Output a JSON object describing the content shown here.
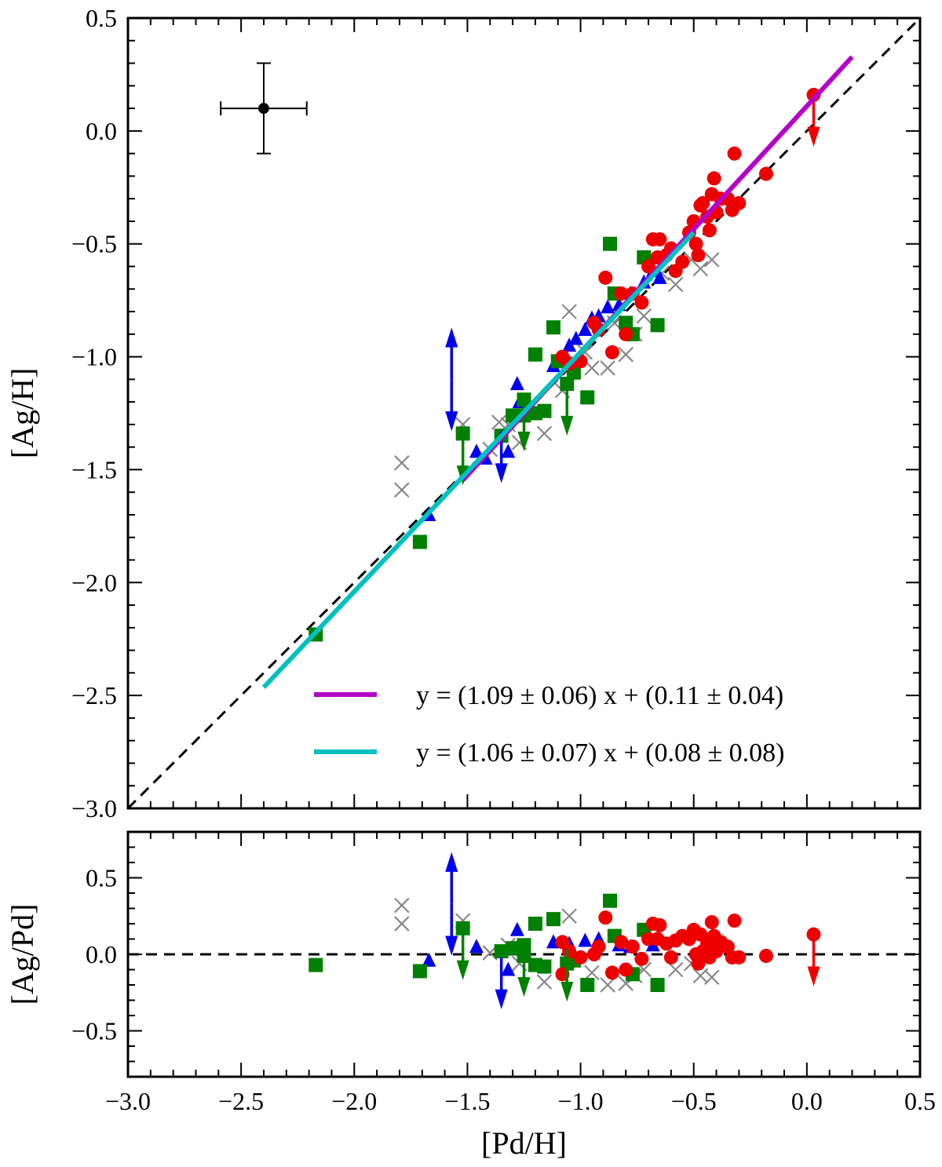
{
  "chart_data": [
    {
      "type": "scatter",
      "panel": "top",
      "xlabel": "",
      "ylabel": "[Ag/H]",
      "xlim": [
        -3.0,
        0.5
      ],
      "ylim": [
        -3.0,
        0.5
      ],
      "xticks": [
        -3.0,
        -2.5,
        -2.0,
        -1.5,
        -1.0,
        -0.5,
        0.0,
        0.5
      ],
      "yticks": [
        -3.0,
        -2.5,
        -2.0,
        -1.5,
        -1.0,
        -0.5,
        0.0,
        0.5
      ],
      "ytick_labels": [
        "−3.0",
        "−2.5",
        "−2.0",
        "−1.5",
        "−1.0",
        "−0.5",
        "0.0",
        "0.5"
      ],
      "grid": false,
      "legend_position": "bottom-right",
      "reference_line": {
        "style": "dashed",
        "color": "#000000",
        "slope": 1,
        "intercept": 0
      },
      "error_bar": {
        "x": -2.4,
        "y": 0.1,
        "xerr": 0.19,
        "yerr": 0.2,
        "color": "#000000"
      },
      "fit_lines": [
        {
          "label": "y = (1.09 ± 0.06) x + (0.11 ± 0.04)",
          "color": "#b400c8",
          "x": [
            -1.52,
            0.2
          ],
          "slope": 1.09,
          "intercept": 0.11
        },
        {
          "label": "y = (1.06 ± 0.07) x + (0.08 ± 0.08)",
          "color": "#00c0c0",
          "x": [
            -2.4,
            -0.5
          ],
          "slope": 1.06,
          "intercept": 0.08
        }
      ],
      "series": [
        {
          "marker": "x",
          "color": "#888888",
          "points": [
            [
              -1.79,
              -1.47
            ],
            [
              -1.79,
              -1.59
            ],
            [
              -1.52,
              -1.3
            ],
            [
              -1.4,
              -1.41
            ],
            [
              -1.36,
              -1.29
            ],
            [
              -1.32,
              -1.3
            ],
            [
              -1.27,
              -1.38
            ],
            [
              -1.16,
              -1.34
            ],
            [
              -1.08,
              -1.15
            ],
            [
              -1.05,
              -0.8
            ],
            [
              -0.98,
              -0.98
            ],
            [
              -0.95,
              -1.05
            ],
            [
              -0.88,
              -1.05
            ],
            [
              -0.85,
              -0.85
            ],
            [
              -0.8,
              -0.99
            ],
            [
              -0.76,
              -0.9
            ],
            [
              -0.72,
              -0.82
            ],
            [
              -0.64,
              -0.63
            ],
            [
              -0.58,
              -0.68
            ],
            [
              -0.47,
              -0.61
            ],
            [
              -0.42,
              -0.57
            ],
            [
              -0.51,
              -0.57
            ]
          ]
        },
        {
          "marker": "triangle",
          "color": "#0000ee",
          "points": [
            [
              -1.67,
              -1.7
            ],
            [
              -1.46,
              -1.42
            ],
            [
              -1.42,
              -1.45
            ],
            [
              -1.32,
              -1.42
            ],
            [
              -1.28,
              -1.12
            ],
            [
              -1.27,
              -1.2
            ],
            [
              -1.12,
              -1.04
            ],
            [
              -1.1,
              -1.02
            ],
            [
              -1.05,
              -0.95
            ],
            [
              -1.02,
              -0.92
            ],
            [
              -0.98,
              -0.88
            ],
            [
              -0.95,
              -0.83
            ],
            [
              -0.92,
              -0.82
            ],
            [
              -0.88,
              -0.78
            ],
            [
              -0.83,
              -0.77
            ],
            [
              -0.78,
              -0.72
            ],
            [
              -0.72,
              -0.67
            ],
            [
              -0.68,
              -0.62
            ],
            [
              -0.65,
              -0.65
            ]
          ]
        },
        {
          "marker": "square",
          "color": "#008000",
          "points": [
            [
              -2.17,
              -2.23
            ],
            [
              -1.71,
              -1.82
            ],
            [
              -1.52,
              -1.34
            ],
            [
              -1.35,
              -1.35
            ],
            [
              -1.3,
              -1.26
            ],
            [
              -1.25,
              -1.19
            ],
            [
              -1.25,
              -1.26
            ],
            [
              -1.2,
              -1.25
            ],
            [
              -1.2,
              -0.99
            ],
            [
              -1.16,
              -1.24
            ],
            [
              -1.12,
              -0.87
            ],
            [
              -1.1,
              -1.02
            ],
            [
              -1.06,
              -1.12
            ],
            [
              -1.03,
              -1.07
            ],
            [
              -0.97,
              -1.18
            ],
            [
              -0.87,
              -0.5
            ],
            [
              -0.85,
              -0.72
            ],
            [
              -0.8,
              -0.85
            ],
            [
              -0.77,
              -0.9
            ],
            [
              -0.72,
              -0.56
            ],
            [
              -0.66,
              -0.86
            ]
          ]
        },
        {
          "marker": "circle",
          "color": "#ee0000",
          "points": [
            [
              -1.08,
              -1.0
            ],
            [
              -1.05,
              -1.03
            ],
            [
              -1.0,
              -1.02
            ],
            [
              -0.94,
              -0.85
            ],
            [
              -0.92,
              -0.88
            ],
            [
              -0.89,
              -0.65
            ],
            [
              -0.86,
              -0.98
            ],
            [
              -0.82,
              -0.72
            ],
            [
              -0.8,
              -0.9
            ],
            [
              -0.77,
              -0.72
            ],
            [
              -0.73,
              -0.76
            ],
            [
              -0.7,
              -0.6
            ],
            [
              -0.68,
              -0.48
            ],
            [
              -0.66,
              -0.56
            ],
            [
              -0.65,
              -0.48
            ],
            [
              -0.62,
              -0.55
            ],
            [
              -0.6,
              -0.52
            ],
            [
              -0.58,
              -0.62
            ],
            [
              -0.55,
              -0.58
            ],
            [
              -0.52,
              -0.45
            ],
            [
              -0.5,
              -0.4
            ],
            [
              -0.49,
              -0.5
            ],
            [
              -0.48,
              -0.55
            ],
            [
              -0.47,
              -0.33
            ],
            [
              -0.46,
              -0.32
            ],
            [
              -0.44,
              -0.38
            ],
            [
              -0.43,
              -0.44
            ],
            [
              -0.42,
              -0.28
            ],
            [
              -0.41,
              -0.21
            ],
            [
              -0.4,
              -0.36
            ],
            [
              -0.38,
              -0.3
            ],
            [
              -0.35,
              -0.3
            ],
            [
              -0.33,
              -0.35
            ],
            [
              -0.32,
              -0.1
            ],
            [
              -0.3,
              -0.32
            ],
            [
              -0.18,
              -0.19
            ],
            [
              0.03,
              0.16
            ]
          ]
        }
      ],
      "limit_arrows": [
        {
          "x": -1.57,
          "y": -1.1,
          "direction": "up",
          "color": "#0000ee"
        },
        {
          "x": -1.57,
          "y": -1.1,
          "direction": "down",
          "color": "#0000ee"
        },
        {
          "x": -1.35,
          "y": -1.33,
          "direction": "down",
          "color": "#0000ee"
        },
        {
          "x": -1.52,
          "y": -1.34,
          "direction": "down",
          "color": "#008000"
        },
        {
          "x": -1.25,
          "y": -1.19,
          "direction": "down",
          "color": "#008000"
        },
        {
          "x": -1.06,
          "y": -1.12,
          "direction": "down",
          "color": "#008000"
        },
        {
          "x": 0.03,
          "y": 0.16,
          "direction": "down",
          "color": "#ee0000"
        }
      ]
    },
    {
      "type": "scatter",
      "panel": "bottom",
      "xlabel": "[Pd/H]",
      "ylabel": "[Ag/Pd]",
      "xlim": [
        -3.0,
        0.5
      ],
      "ylim": [
        -0.8,
        0.8
      ],
      "xticks": [
        -3.0,
        -2.5,
        -2.0,
        -1.5,
        -1.0,
        -0.5,
        0.0,
        0.5
      ],
      "xtick_labels": [
        "−3.0",
        "−2.5",
        "−2.0",
        "−1.5",
        "−1.0",
        "−0.5",
        "0.0",
        "0.5"
      ],
      "yticks": [
        -0.5,
        0.0,
        0.5
      ],
      "ytick_labels": [
        "−0.5",
        "0.0",
        "0.5"
      ],
      "grid": false,
      "reference_line": {
        "style": "dashed",
        "color": "#000000",
        "y": 0.0
      },
      "series": [
        {
          "marker": "x",
          "color": "#888888",
          "points": [
            [
              -1.79,
              0.32
            ],
            [
              -1.79,
              0.2
            ],
            [
              -1.52,
              0.22
            ],
            [
              -1.4,
              0.01
            ],
            [
              -1.32,
              0.06
            ],
            [
              -1.27,
              -0.06
            ],
            [
              -1.16,
              -0.18
            ],
            [
              -1.05,
              0.25
            ],
            [
              -0.95,
              -0.12
            ],
            [
              -0.88,
              -0.2
            ],
            [
              -0.8,
              -0.19
            ],
            [
              -0.76,
              -0.14
            ],
            [
              -0.72,
              -0.1
            ],
            [
              -0.58,
              -0.1
            ],
            [
              -0.47,
              -0.14
            ],
            [
              -0.42,
              -0.15
            ],
            [
              -0.51,
              -0.06
            ]
          ]
        },
        {
          "marker": "triangle",
          "color": "#0000ee",
          "points": [
            [
              -1.67,
              -0.04
            ],
            [
              -1.46,
              0.05
            ],
            [
              -1.32,
              -0.1
            ],
            [
              -1.28,
              0.16
            ],
            [
              -1.12,
              0.08
            ],
            [
              -1.05,
              0.07
            ],
            [
              -0.98,
              0.09
            ],
            [
              -0.92,
              0.1
            ],
            [
              -0.83,
              0.06
            ],
            [
              -0.78,
              0.05
            ],
            [
              -0.68,
              0.06
            ]
          ]
        },
        {
          "marker": "square",
          "color": "#008000",
          "points": [
            [
              -2.17,
              -0.07
            ],
            [
              -1.71,
              -0.11
            ],
            [
              -1.52,
              0.17
            ],
            [
              -1.35,
              0.02
            ],
            [
              -1.3,
              0.04
            ],
            [
              -1.25,
              0.06
            ],
            [
              -1.25,
              -0.01
            ],
            [
              -1.2,
              -0.07
            ],
            [
              -1.2,
              0.2
            ],
            [
              -1.16,
              -0.08
            ],
            [
              -1.12,
              0.23
            ],
            [
              -1.06,
              -0.06
            ],
            [
              -1.03,
              -0.04
            ],
            [
              -0.97,
              -0.2
            ],
            [
              -0.87,
              0.35
            ],
            [
              -0.85,
              0.12
            ],
            [
              -0.77,
              -0.13
            ],
            [
              -0.72,
              0.16
            ],
            [
              -0.66,
              -0.2
            ]
          ]
        },
        {
          "marker": "circle",
          "color": "#ee0000",
          "points": [
            [
              -1.08,
              0.08
            ],
            [
              -1.08,
              -0.13
            ],
            [
              -1.05,
              0.02
            ],
            [
              -1.0,
              -0.02
            ],
            [
              -0.94,
              0.0
            ],
            [
              -0.92,
              0.05
            ],
            [
              -0.89,
              0.24
            ],
            [
              -0.86,
              -0.12
            ],
            [
              -0.82,
              0.08
            ],
            [
              -0.8,
              -0.1
            ],
            [
              -0.77,
              0.05
            ],
            [
              -0.73,
              -0.03
            ],
            [
              -0.7,
              0.1
            ],
            [
              -0.68,
              0.2
            ],
            [
              -0.66,
              0.1
            ],
            [
              -0.65,
              0.19
            ],
            [
              -0.62,
              0.07
            ],
            [
              -0.6,
              -0.02
            ],
            [
              -0.58,
              0.09
            ],
            [
              -0.55,
              0.12
            ],
            [
              -0.52,
              0.1
            ],
            [
              -0.5,
              0.16
            ],
            [
              -0.49,
              0.0
            ],
            [
              -0.48,
              -0.06
            ],
            [
              -0.47,
              0.13
            ],
            [
              -0.46,
              0.02
            ],
            [
              -0.44,
              0.07
            ],
            [
              -0.43,
              -0.02
            ],
            [
              -0.42,
              0.21
            ],
            [
              -0.41,
              0.12
            ],
            [
              -0.4,
              0.02
            ],
            [
              -0.38,
              0.08
            ],
            [
              -0.35,
              0.05
            ],
            [
              -0.33,
              -0.02
            ],
            [
              -0.32,
              0.22
            ],
            [
              -0.3,
              -0.02
            ],
            [
              -0.18,
              -0.01
            ],
            [
              0.03,
              0.13
            ]
          ]
        }
      ],
      "limit_arrows": [
        {
          "x": -1.57,
          "y": 0.33,
          "direction": "up",
          "color": "#0000ee"
        },
        {
          "x": -1.57,
          "y": 0.33,
          "direction": "down",
          "color": "#0000ee"
        },
        {
          "x": -1.35,
          "y": -0.02,
          "direction": "down",
          "color": "#0000ee"
        },
        {
          "x": -1.52,
          "y": 0.17,
          "direction": "down",
          "color": "#008000"
        },
        {
          "x": -1.25,
          "y": 0.06,
          "direction": "down",
          "color": "#008000"
        },
        {
          "x": -1.06,
          "y": 0.03,
          "direction": "down",
          "color": "#008000"
        },
        {
          "x": 0.03,
          "y": 0.13,
          "direction": "down",
          "color": "#ee0000"
        }
      ]
    }
  ]
}
